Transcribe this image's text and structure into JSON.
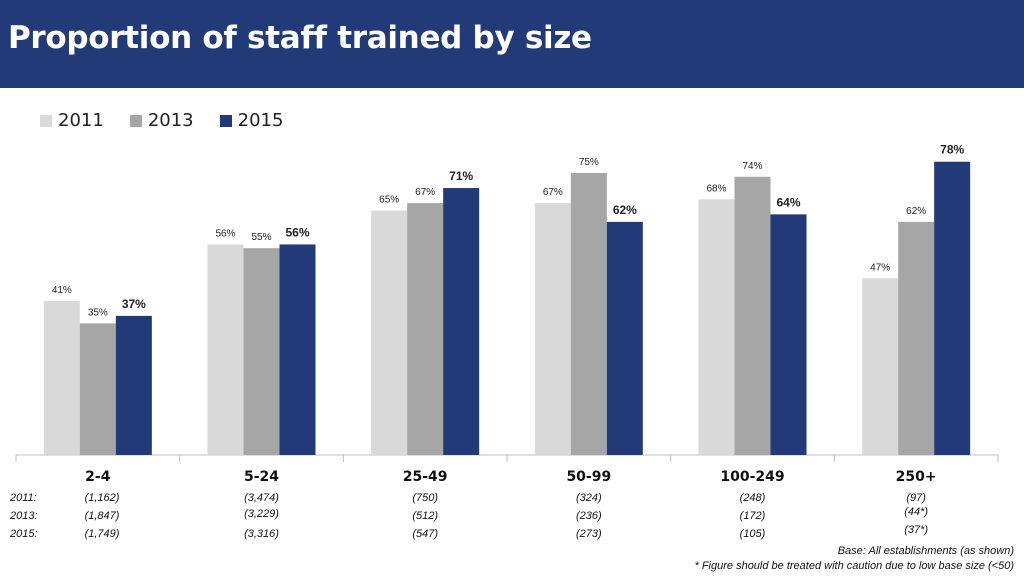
{
  "title": "Proportion of staff trained by size",
  "colors": {
    "header": "#223a78",
    "s2011": "#d9d9d9",
    "s2013": "#a6a6a6",
    "s2015": "#223a78"
  },
  "chart_data": {
    "type": "bar",
    "categories": [
      "2-4",
      "5-24",
      "25-49",
      "50-99",
      "100-249",
      "250+"
    ],
    "series": [
      {
        "name": "2011",
        "values": [
          41,
          56,
          65,
          67,
          68,
          47
        ],
        "labels": [
          "41%",
          "56%",
          "65%",
          "67%",
          "68%",
          "47%"
        ]
      },
      {
        "name": "2013",
        "values": [
          35,
          55,
          67,
          75,
          74,
          62
        ],
        "labels": [
          "35%",
          "55%",
          "67%",
          "75%",
          "74%",
          "62%"
        ]
      },
      {
        "name": "2015",
        "values": [
          37,
          56,
          71,
          62,
          64,
          78
        ],
        "labels": [
          "37%",
          "56%",
          "71%",
          "62%",
          "64%",
          "78%"
        ]
      }
    ],
    "ylim": [
      0,
      80
    ],
    "legend_position": "top-left",
    "grid": false
  },
  "base_sizes": {
    "rows": [
      {
        "label": "2011:",
        "values": [
          "(1,162)",
          "(3,474)",
          "(750)",
          "(324)",
          "(248)",
          "(97)"
        ]
      },
      {
        "label": "2013:",
        "values": [
          "(1,847)",
          "(3,229)",
          "(512)",
          "(236)",
          "(172)",
          "(44*)"
        ]
      },
      {
        "label": "2015:",
        "values": [
          "(1,749)",
          "(3,316)",
          "(547)",
          "(273)",
          "(105)",
          "(37*)"
        ]
      }
    ]
  },
  "notes": {
    "base": "Base: All establishments  (as shown)",
    "caution": "* Figure should be treated with caution due to low base size (<50)"
  }
}
